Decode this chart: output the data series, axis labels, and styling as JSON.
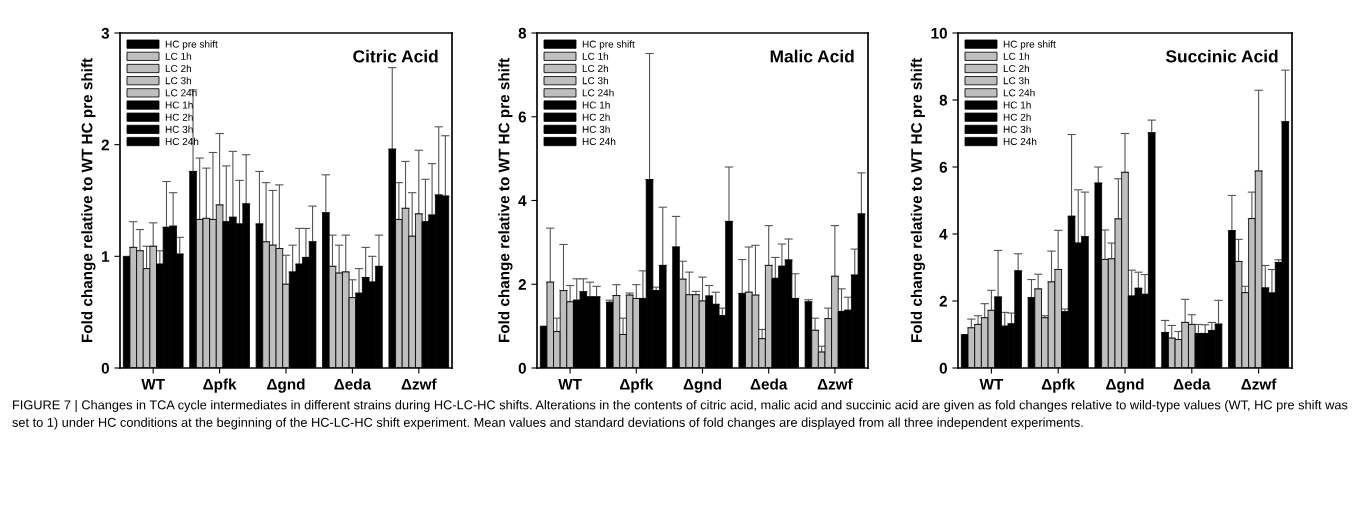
{
  "chart_data": [
    {
      "type": "bar",
      "title": "Citric Acid",
      "ylabel": "Fold change relative to WT HC pre shift",
      "categories": [
        "WT",
        "Δpfk",
        "Δgnd",
        "Δeda",
        "Δzwf"
      ],
      "ylim": [
        0,
        3
      ],
      "yticks": [
        0,
        1,
        2,
        3
      ],
      "legend": "top left",
      "grid": false,
      "annotations": [
        "FIGURE 7 | Changes in TCA cycle intermediates in different strains during HC-LC-HC shifts. Alterations in the contents of citric acid, malic acid and succinic acid are given as fold changes relative to wild-type values (WT, HC pre shift was set to 1) under HC conditions at the beginning of the HC-LC-HC shift experiment. Mean values and standard deviations of fold changes are displayed from all three independent experiments."
      ],
      "series": [
        {
          "name": "HC pre shift",
          "color": "#000000",
          "values": [
            1.0,
            1.76,
            1.29,
            1.39,
            1.96
          ],
          "errors": [
            null,
            [
              1.76,
              2.49
            ],
            [
              1.29,
              1.76
            ],
            [
              1.39,
              1.73
            ],
            [
              1.96,
              2.69
            ]
          ]
        },
        {
          "name": "LC 1h",
          "color": "#bfbfbf",
          "values": [
            1.08,
            1.33,
            1.13,
            0.91,
            1.33
          ],
          "errors": [
            [
              1.08,
              1.31
            ],
            [
              1.33,
              1.88
            ],
            [
              1.13,
              1.66
            ],
            [
              0.91,
              1.19
            ],
            [
              1.33,
              1.66
            ]
          ]
        },
        {
          "name": "LC 2h",
          "color": "#bfbfbf",
          "values": [
            1.05,
            1.34,
            1.1,
            0.85,
            1.43
          ],
          "errors": [
            [
              1.05,
              1.24
            ],
            [
              1.34,
              1.79
            ],
            [
              1.1,
              1.59
            ],
            [
              0.85,
              1.1
            ],
            [
              1.43,
              1.85
            ]
          ]
        },
        {
          "name": "LC 3h",
          "color": "#bfbfbf",
          "values": [
            0.89,
            1.33,
            1.07,
            0.86,
            1.18
          ],
          "errors": [
            [
              0.89,
              1.09
            ],
            [
              1.33,
              1.93
            ],
            [
              1.07,
              1.64
            ],
            [
              0.86,
              1.19
            ],
            [
              1.18,
              1.57
            ]
          ]
        },
        {
          "name": "LC 24h",
          "color": "#bfbfbf",
          "values": [
            1.09,
            1.46,
            0.75,
            0.63,
            1.38
          ],
          "errors": [
            [
              1.09,
              1.3
            ],
            [
              1.46,
              2.1
            ],
            [
              0.75,
              1.01
            ],
            [
              0.63,
              0.79
            ],
            [
              1.38,
              1.95
            ]
          ]
        },
        {
          "name": "HC 1h",
          "color": "#000000",
          "values": [
            0.93,
            1.31,
            0.86,
            0.67,
            1.31
          ],
          "errors": [
            [
              0.93,
              1.05
            ],
            [
              1.31,
              1.81
            ],
            [
              0.86,
              1.1
            ],
            [
              0.67,
              0.89
            ],
            [
              1.31,
              1.69
            ]
          ]
        },
        {
          "name": "HC 2h",
          "color": "#000000",
          "values": [
            1.26,
            1.35,
            0.93,
            0.81,
            1.37
          ],
          "errors": [
            [
              1.26,
              1.67
            ],
            [
              1.35,
              1.94
            ],
            [
              0.93,
              1.25
            ],
            [
              0.81,
              1.08
            ],
            [
              1.37,
              1.83
            ]
          ]
        },
        {
          "name": "HC 3h",
          "color": "#000000",
          "values": [
            1.27,
            1.29,
            0.99,
            0.77,
            1.55
          ],
          "errors": [
            [
              1.27,
              1.57
            ],
            [
              1.29,
              1.68
            ],
            [
              0.99,
              1.25
            ],
            [
              0.77,
              1.0
            ],
            [
              1.55,
              2.16
            ]
          ]
        },
        {
          "name": "HC 24h",
          "color": "#000000",
          "values": [
            1.02,
            1.47,
            1.13,
            0.91,
            1.54
          ],
          "errors": [
            [
              1.02,
              1.17
            ],
            [
              1.47,
              1.91
            ],
            [
              1.13,
              1.45
            ],
            [
              0.91,
              1.19
            ],
            [
              1.54,
              2.08
            ]
          ]
        }
      ]
    },
    {
      "type": "bar",
      "title": "Malic Acid",
      "ylabel": "Fold change relative to WT HC pre shift",
      "categories": [
        "WT",
        "Δpfk",
        "Δgnd",
        "Δeda",
        "Δzwf"
      ],
      "ylim": [
        0,
        8
      ],
      "yticks": [
        0,
        2,
        4,
        6,
        8
      ],
      "legend": "top left",
      "grid": false,
      "series": [
        {
          "name": "HC pre shift",
          "color": "#000000",
          "values": [
            1.0,
            1.57,
            2.89,
            1.78,
            1.58
          ],
          "errors": [
            null,
            [
              1.57,
              1.62
            ],
            [
              2.89,
              3.62
            ],
            [
              1.78,
              2.59
            ],
            [
              1.58,
              1.63
            ]
          ]
        },
        {
          "name": "LC 1h",
          "color": "#bfbfbf",
          "values": [
            2.05,
            1.73,
            2.12,
            1.81,
            0.9
          ],
          "errors": [
            [
              2.05,
              3.34
            ],
            [
              1.73,
              1.99
            ],
            [
              2.12,
              2.55
            ],
            [
              1.81,
              2.89
            ],
            [
              0.9,
              1.19
            ]
          ]
        },
        {
          "name": "LC 2h",
          "color": "#bfbfbf",
          "values": [
            0.87,
            0.8,
            1.75,
            1.74,
            0.38
          ],
          "errors": [
            [
              0.87,
              1.19
            ],
            [
              0.8,
              1.19
            ],
            [
              1.75,
              2.29
            ],
            [
              1.74,
              2.93
            ],
            [
              0.38,
              0.52
            ]
          ]
        },
        {
          "name": "LC 3h",
          "color": "#bfbfbf",
          "values": [
            1.85,
            1.74,
            1.75,
            0.7,
            1.18
          ],
          "errors": [
            [
              1.85,
              2.95
            ],
            [
              1.74,
              1.79
            ],
            [
              1.75,
              1.83
            ],
            [
              0.7,
              0.92
            ],
            [
              1.18,
              1.43
            ]
          ]
        },
        {
          "name": "LC 24h",
          "color": "#bfbfbf",
          "values": [
            1.58,
            1.66,
            1.6,
            2.45,
            2.19
          ],
          "errors": [
            [
              1.58,
              1.97
            ],
            [
              1.66,
              1.99
            ],
            [
              1.6,
              2.17
            ],
            [
              2.45,
              3.4
            ],
            [
              2.19,
              3.4
            ]
          ]
        },
        {
          "name": "HC 1h",
          "color": "#000000",
          "values": [
            1.62,
            1.66,
            1.72,
            2.14,
            1.35
          ],
          "errors": [
            [
              1.62,
              2.13
            ],
            [
              1.66,
              2.32
            ],
            [
              1.72,
              1.97
            ],
            [
              2.14,
              2.64
            ],
            [
              1.35,
              1.89
            ]
          ]
        },
        {
          "name": "HC 2h",
          "color": "#000000",
          "values": [
            1.82,
            4.5,
            1.52,
            2.43,
            1.38
          ],
          "errors": [
            [
              1.82,
              2.13
            ],
            [
              4.5,
              7.51
            ],
            [
              1.52,
              1.81
            ],
            [
              2.43,
              2.96
            ],
            [
              1.38,
              1.69
            ]
          ]
        },
        {
          "name": "HC 3h",
          "color": "#000000",
          "values": [
            1.7,
            1.85,
            1.25,
            2.58,
            2.22
          ],
          "errors": [
            [
              1.7,
              2.05
            ],
            [
              1.85,
              1.93
            ],
            [
              1.25,
              1.43
            ],
            [
              2.58,
              3.08
            ],
            [
              2.22,
              2.84
            ]
          ]
        },
        {
          "name": "HC 24h",
          "color": "#000000",
          "values": [
            1.7,
            2.45,
            3.5,
            1.66,
            3.68
          ],
          "errors": [
            [
              1.7,
              1.95
            ],
            [
              2.45,
              3.84
            ],
            [
              3.5,
              4.8
            ],
            [
              1.66,
              2.25
            ],
            [
              3.68,
              4.66
            ]
          ]
        }
      ]
    },
    {
      "type": "bar",
      "title": "Succinic Acid",
      "ylabel": "Fold change relative to WT HC pre shift",
      "categories": [
        "WT",
        "Δpfk",
        "Δgnd",
        "Δeda",
        "Δzwf"
      ],
      "ylim": [
        0,
        10
      ],
      "yticks": [
        0,
        2,
        4,
        6,
        8,
        10
      ],
      "legend": "top left",
      "grid": false,
      "series": [
        {
          "name": "HC pre shift",
          "color": "#000000",
          "values": [
            1.0,
            2.1,
            5.52,
            1.06,
            4.1
          ],
          "errors": [
            null,
            [
              2.1,
              2.64
            ],
            [
              5.52,
              6.0
            ],
            [
              1.06,
              1.42
            ],
            [
              4.1,
              5.15
            ]
          ]
        },
        {
          "name": "LC 1h",
          "color": "#bfbfbf",
          "values": [
            1.2,
            2.36,
            3.24,
            0.89,
            3.18
          ],
          "errors": [
            [
              1.2,
              1.46
            ],
            [
              2.36,
              2.8
            ],
            [
              3.24,
              4.12
            ],
            [
              0.89,
              1.27
            ],
            [
              3.18,
              3.84
            ]
          ]
        },
        {
          "name": "LC 2h",
          "color": "#bfbfbf",
          "values": [
            1.3,
            1.5,
            3.26,
            0.85,
            2.25
          ],
          "errors": [
            [
              1.3,
              1.56
            ],
            [
              1.5,
              1.56
            ],
            [
              3.26,
              3.73
            ],
            [
              0.85,
              1.09
            ],
            [
              2.25,
              2.44
            ]
          ]
        },
        {
          "name": "LC 3h",
          "color": "#bfbfbf",
          "values": [
            1.5,
            2.57,
            4.45,
            1.36,
            4.46
          ],
          "errors": [
            [
              1.5,
              1.92
            ],
            [
              2.57,
              3.49
            ],
            [
              4.45,
              5.65
            ],
            [
              1.36,
              2.05
            ],
            [
              4.46,
              5.25
            ]
          ]
        },
        {
          "name": "LC 24h",
          "color": "#bfbfbf",
          "values": [
            1.72,
            2.94,
            5.84,
            1.3,
            5.88
          ],
          "errors": [
            [
              1.72,
              2.32
            ],
            [
              2.94,
              4.11
            ],
            [
              5.84,
              7.0
            ],
            [
              1.3,
              1.59
            ],
            [
              5.88,
              8.29
            ]
          ]
        },
        {
          "name": "HC 1h",
          "color": "#000000",
          "values": [
            2.12,
            1.68,
            2.15,
            1.03,
            2.39
          ],
          "errors": [
            [
              2.12,
              3.51
            ],
            [
              1.68,
              1.76
            ],
            [
              2.15,
              2.92
            ],
            [
              1.03,
              1.3
            ],
            [
              2.39,
              3.06
            ]
          ]
        },
        {
          "name": "HC 2h",
          "color": "#000000",
          "values": [
            1.25,
            4.53,
            2.38,
            1.03,
            2.24
          ],
          "errors": [
            [
              1.25,
              1.66
            ],
            [
              4.53,
              6.97
            ],
            [
              2.38,
              2.86
            ],
            [
              1.03,
              1.29
            ],
            [
              2.24,
              2.94
            ]
          ]
        },
        {
          "name": "HC 3h",
          "color": "#000000",
          "values": [
            1.32,
            3.73,
            2.2,
            1.12,
            3.15
          ],
          "errors": [
            [
              1.32,
              1.64
            ],
            [
              3.73,
              5.32
            ],
            [
              2.2,
              2.79
            ],
            [
              1.12,
              1.36
            ],
            [
              3.15,
              3.23
            ]
          ]
        },
        {
          "name": "HC 24h",
          "color": "#000000",
          "values": [
            2.9,
            3.92,
            7.02,
            1.31,
            7.35
          ],
          "errors": [
            [
              2.9,
              3.41
            ],
            [
              3.92,
              5.25
            ],
            [
              7.02,
              7.4
            ],
            [
              1.31,
              2.02
            ],
            [
              7.35,
              8.89
            ]
          ]
        }
      ]
    }
  ]
}
